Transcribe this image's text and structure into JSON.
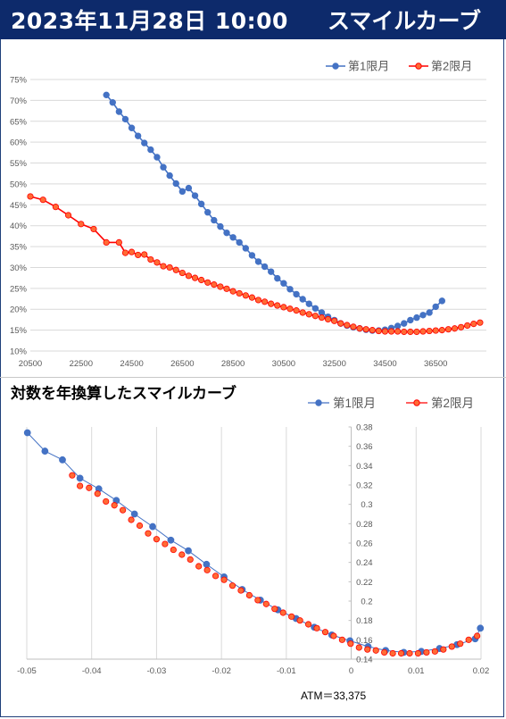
{
  "header": {
    "date": "2023年11月28日 10:00",
    "title": "スマイルカーブ",
    "bg_color": "#0d2a6b"
  },
  "chart_data": [
    {
      "type": "line",
      "title": "",
      "xlabel": "",
      "ylabel": "",
      "xlim": [
        20500,
        38500
      ],
      "ylim": [
        0.1,
        0.75
      ],
      "xticks": [
        20500,
        22500,
        24500,
        26500,
        28500,
        30500,
        32500,
        34500,
        36500
      ],
      "yticks": [
        0.1,
        0.15,
        0.2,
        0.25,
        0.3,
        0.35,
        0.4,
        0.45,
        0.5,
        0.55,
        0.6,
        0.65,
        0.7,
        0.75
      ],
      "ytick_labels": [
        "10%",
        "15%",
        "20%",
        "25%",
        "30%",
        "35%",
        "40%",
        "45%",
        "50%",
        "55%",
        "60%",
        "65%",
        "70%",
        "75%"
      ],
      "grid": "horizontal",
      "legend": "top-right",
      "series": [
        {
          "name": "第1限月",
          "color": "#4472c4",
          "points": [
            [
              23500,
              0.713
            ],
            [
              23750,
              0.695
            ],
            [
              24000,
              0.673
            ],
            [
              24250,
              0.655
            ],
            [
              24500,
              0.634
            ],
            [
              24750,
              0.615
            ],
            [
              25000,
              0.598
            ],
            [
              25250,
              0.582
            ],
            [
              25500,
              0.564
            ],
            [
              25750,
              0.54
            ],
            [
              26000,
              0.52
            ],
            [
              26250,
              0.501
            ],
            [
              26500,
              0.482
            ],
            [
              26750,
              0.49
            ],
            [
              27000,
              0.472
            ],
            [
              27250,
              0.452
            ],
            [
              27500,
              0.432
            ],
            [
              27750,
              0.413
            ],
            [
              28000,
              0.398
            ],
            [
              28250,
              0.383
            ],
            [
              28500,
              0.372
            ],
            [
              28750,
              0.36
            ],
            [
              29000,
              0.346
            ],
            [
              29250,
              0.329
            ],
            [
              29500,
              0.314
            ],
            [
              29750,
              0.302
            ],
            [
              30000,
              0.29
            ],
            [
              30250,
              0.274
            ],
            [
              30500,
              0.262
            ],
            [
              30750,
              0.248
            ],
            [
              31000,
              0.236
            ],
            [
              31250,
              0.224
            ],
            [
              31500,
              0.213
            ],
            [
              31750,
              0.202
            ],
            [
              32000,
              0.192
            ],
            [
              32250,
              0.182
            ],
            [
              32500,
              0.174
            ],
            [
              32750,
              0.166
            ],
            [
              33000,
              0.161
            ],
            [
              33250,
              0.157
            ],
            [
              33500,
              0.154
            ],
            [
              33750,
              0.151
            ],
            [
              34000,
              0.149
            ],
            [
              34250,
              0.149
            ],
            [
              34500,
              0.151
            ],
            [
              34750,
              0.155
            ],
            [
              35000,
              0.16
            ],
            [
              35250,
              0.166
            ],
            [
              35500,
              0.174
            ],
            [
              35750,
              0.18
            ],
            [
              36000,
              0.186
            ],
            [
              36250,
              0.192
            ],
            [
              36500,
              0.206
            ],
            [
              36750,
              0.22
            ]
          ]
        },
        {
          "name": "第2限月",
          "color": "#ff0000",
          "points": [
            [
              20500,
              0.47
            ],
            [
              21000,
              0.462
            ],
            [
              21500,
              0.445
            ],
            [
              22000,
              0.425
            ],
            [
              22500,
              0.404
            ],
            [
              23000,
              0.392
            ],
            [
              23500,
              0.36
            ],
            [
              24000,
              0.36
            ],
            [
              24250,
              0.335
            ],
            [
              24500,
              0.337
            ],
            [
              24750,
              0.33
            ],
            [
              25000,
              0.331
            ],
            [
              25250,
              0.319
            ],
            [
              25500,
              0.312
            ],
            [
              25750,
              0.303
            ],
            [
              26000,
              0.3
            ],
            [
              26250,
              0.294
            ],
            [
              26500,
              0.287
            ],
            [
              26750,
              0.28
            ],
            [
              27000,
              0.275
            ],
            [
              27250,
              0.27
            ],
            [
              27500,
              0.264
            ],
            [
              27750,
              0.259
            ],
            [
              28000,
              0.254
            ],
            [
              28250,
              0.249
            ],
            [
              28500,
              0.243
            ],
            [
              28750,
              0.238
            ],
            [
              29000,
              0.233
            ],
            [
              29250,
              0.228
            ],
            [
              29500,
              0.222
            ],
            [
              29750,
              0.218
            ],
            [
              30000,
              0.213
            ],
            [
              30250,
              0.209
            ],
            [
              30500,
              0.205
            ],
            [
              30750,
              0.201
            ],
            [
              31000,
              0.197
            ],
            [
              31250,
              0.192
            ],
            [
              31500,
              0.188
            ],
            [
              31750,
              0.184
            ],
            [
              32000,
              0.18
            ],
            [
              32250,
              0.176
            ],
            [
              32500,
              0.172
            ],
            [
              32750,
              0.166
            ],
            [
              33000,
              0.162
            ],
            [
              33250,
              0.158
            ],
            [
              33500,
              0.154
            ],
            [
              33750,
              0.152
            ],
            [
              34000,
              0.15
            ],
            [
              34250,
              0.148
            ],
            [
              34500,
              0.147
            ],
            [
              34750,
              0.147
            ],
            [
              35000,
              0.147
            ],
            [
              35250,
              0.146
            ],
            [
              35500,
              0.146
            ],
            [
              35750,
              0.146
            ],
            [
              36000,
              0.147
            ],
            [
              36250,
              0.148
            ],
            [
              36500,
              0.149
            ],
            [
              36750,
              0.15
            ],
            [
              37000,
              0.152
            ],
            [
              37250,
              0.154
            ],
            [
              37500,
              0.157
            ],
            [
              37750,
              0.161
            ],
            [
              38000,
              0.165
            ],
            [
              38250,
              0.168
            ]
          ]
        }
      ]
    },
    {
      "type": "scatter",
      "title": "対数を年換算したスマイルカーブ",
      "xlabel": "",
      "ylabel": "",
      "xlim": [
        -0.05,
        0.02
      ],
      "ylim": [
        0.14,
        0.38
      ],
      "xticks": [
        -0.05,
        -0.04,
        -0.03,
        -0.02,
        -0.01,
        0,
        0.01,
        0.02
      ],
      "xtick_labels": [
        "-0.05",
        "-0.04",
        "-0.03",
        "-0.02",
        "-0.01",
        "0",
        "0.01",
        "0.02"
      ],
      "yticks": [
        0.14,
        0.16,
        0.18,
        0.2,
        0.22,
        0.24,
        0.26,
        0.28,
        0.3,
        0.32,
        0.34,
        0.36,
        0.38
      ],
      "ytick_labels": [
        "0.14",
        "0.16",
        "0.18",
        "0.2",
        "0.22",
        "0.24",
        "0.26",
        "0.28",
        "0.3",
        "0.32",
        "0.34",
        "0.36",
        "0.38"
      ],
      "grid": "vertical",
      "legend": "top-right",
      "annotation": "ATM＝33,375",
      "series": [
        {
          "name": "第1限月",
          "color": "#4472c4",
          "marker": "circle",
          "line": true,
          "points": [
            [
              -0.0499,
              0.374
            ],
            [
              -0.0472,
              0.355
            ],
            [
              -0.0445,
              0.346
            ],
            [
              -0.0418,
              0.327
            ],
            [
              -0.0389,
              0.316
            ],
            [
              -0.0362,
              0.304
            ],
            [
              -0.0334,
              0.29
            ],
            [
              -0.0306,
              0.277
            ],
            [
              -0.0278,
              0.263
            ],
            [
              -0.0251,
              0.252
            ],
            [
              -0.0223,
              0.238
            ],
            [
              -0.0196,
              0.225
            ],
            [
              -0.0168,
              0.212
            ],
            [
              -0.014,
              0.201
            ],
            [
              -0.0113,
              0.191
            ],
            [
              -0.0085,
              0.182
            ],
            [
              -0.0057,
              0.173
            ],
            [
              -0.003,
              0.165
            ],
            [
              -0.0002,
              0.159
            ],
            [
              0.0026,
              0.153
            ],
            [
              0.0053,
              0.149
            ],
            [
              0.0081,
              0.147
            ],
            [
              0.0108,
              0.148
            ],
            [
              0.0136,
              0.151
            ],
            [
              0.0163,
              0.155
            ],
            [
              0.0191,
              0.161
            ],
            [
              0.0199,
              0.172
            ]
          ]
        },
        {
          "name": "第2限月",
          "color": "#ff0000",
          "marker": "circle",
          "line": false,
          "points": [
            [
              -0.043,
              0.33
            ],
            [
              -0.0418,
              0.319
            ],
            [
              -0.0404,
              0.317
            ],
            [
              -0.0391,
              0.311
            ],
            [
              -0.0378,
              0.303
            ],
            [
              -0.0365,
              0.299
            ],
            [
              -0.0352,
              0.294
            ],
            [
              -0.0339,
              0.284
            ],
            [
              -0.0326,
              0.278
            ],
            [
              -0.0313,
              0.27
            ],
            [
              -0.03,
              0.264
            ],
            [
              -0.0287,
              0.259
            ],
            [
              -0.0274,
              0.253
            ],
            [
              -0.0261,
              0.248
            ],
            [
              -0.0248,
              0.243
            ],
            [
              -0.0235,
              0.236
            ],
            [
              -0.0222,
              0.232
            ],
            [
              -0.0209,
              0.226
            ],
            [
              -0.0196,
              0.222
            ],
            [
              -0.0183,
              0.216
            ],
            [
              -0.017,
              0.211
            ],
            [
              -0.0157,
              0.206
            ],
            [
              -0.0144,
              0.201
            ],
            [
              -0.0131,
              0.197
            ],
            [
              -0.0118,
              0.192
            ],
            [
              -0.0105,
              0.188
            ],
            [
              -0.0092,
              0.184
            ],
            [
              -0.0079,
              0.18
            ],
            [
              -0.0066,
              0.176
            ],
            [
              -0.0053,
              0.172
            ],
            [
              -0.004,
              0.168
            ],
            [
              -0.0027,
              0.164
            ],
            [
              -0.0014,
              0.16
            ],
            [
              -0.0001,
              0.156
            ],
            [
              0.0012,
              0.152
            ],
            [
              0.0025,
              0.15
            ],
            [
              0.0038,
              0.149
            ],
            [
              0.0051,
              0.147
            ],
            [
              0.0064,
              0.146
            ],
            [
              0.0077,
              0.146
            ],
            [
              0.009,
              0.146
            ],
            [
              0.0103,
              0.146
            ],
            [
              0.0116,
              0.147
            ],
            [
              0.0129,
              0.148
            ],
            [
              0.0142,
              0.15
            ],
            [
              0.0155,
              0.153
            ],
            [
              0.0168,
              0.156
            ],
            [
              0.0181,
              0.16
            ],
            [
              0.0194,
              0.164
            ]
          ]
        }
      ]
    }
  ]
}
